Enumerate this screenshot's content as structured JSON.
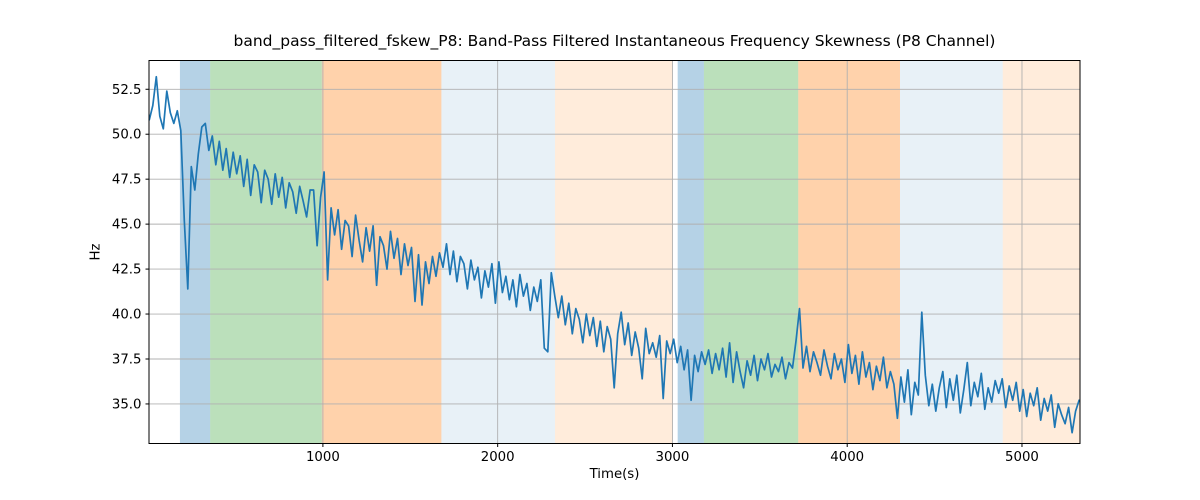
{
  "figure": {
    "title": "band_pass_filtered_fskew_P8: Band-Pass Filtered Instantaneous Frequency Skewness (P8 Channel)",
    "xlabel": "Time(s)",
    "ylabel": "Hz"
  },
  "chart_data": {
    "type": "line",
    "title": "band_pass_filtered_fskew_P8: Band-Pass Filtered Instantaneous Frequency Skewness (P8 Channel)",
    "xlabel": "Time(s)",
    "ylabel": "Hz",
    "xlim": [
      5,
      5332
    ],
    "ylim": [
      32.8,
      54.1
    ],
    "xticks": [
      1000,
      2000,
      3000,
      4000,
      5000
    ],
    "yticks": [
      35.0,
      37.5,
      40.0,
      42.5,
      45.0,
      47.5,
      50.0,
      52.5
    ],
    "grid": true,
    "grid_color": "#b0b0b0",
    "line_color": "#1f77b4",
    "axes_edge_color": "#000000",
    "background": "#ffffff",
    "legend": "none",
    "bands": [
      {
        "label": "blue-band-1",
        "start": 182,
        "end": 355,
        "color": "rgba(31,119,180,0.33)"
      },
      {
        "label": "green-band-1",
        "start": 355,
        "end": 994,
        "color": "rgba(44,160,44,0.32)"
      },
      {
        "label": "orange-band-1",
        "start": 994,
        "end": 1678,
        "color": "rgba(255,127,14,0.35)"
      },
      {
        "label": "lightblue-band-1",
        "start": 1678,
        "end": 2328,
        "color": "rgba(31,119,180,0.10)"
      },
      {
        "label": "lightorange-band-1",
        "start": 2328,
        "end": 3002,
        "color": "rgba(255,127,14,0.15)"
      },
      {
        "label": "blue-band-2",
        "start": 3030,
        "end": 3180,
        "color": "rgba(31,119,180,0.33)"
      },
      {
        "label": "green-band-2",
        "start": 3180,
        "end": 3720,
        "color": "rgba(44,160,44,0.32)"
      },
      {
        "label": "orange-band-2",
        "start": 3720,
        "end": 4302,
        "color": "rgba(255,127,14,0.35)"
      },
      {
        "label": "lightblue-band-2",
        "start": 4302,
        "end": 4890,
        "color": "rgba(31,119,180,0.10)"
      },
      {
        "label": "lightorange-band-2",
        "start": 4890,
        "end": 5332,
        "color": "rgba(255,127,14,0.15)"
      }
    ],
    "series": [
      {
        "name": "band_pass_filtered_fskew_P8",
        "x_start": 7,
        "x_step": 20,
        "y": [
          50.8,
          51.6,
          53.2,
          51.0,
          50.3,
          52.4,
          51.2,
          50.6,
          51.3,
          50.2,
          45.2,
          41.4,
          48.2,
          46.9,
          48.9,
          50.4,
          50.6,
          49.1,
          49.9,
          48.3,
          49.6,
          48.0,
          49.2,
          47.6,
          49.0,
          47.8,
          48.8,
          47.1,
          48.6,
          46.6,
          48.3,
          47.9,
          46.2,
          48.0,
          47.5,
          46.1,
          47.8,
          46.5,
          47.6,
          45.9,
          47.3,
          46.8,
          45.6,
          47.1,
          46.3,
          45.4,
          46.9,
          46.9,
          43.8,
          46.5,
          47.9,
          41.9,
          45.9,
          44.4,
          45.8,
          43.6,
          45.2,
          44.9,
          43.2,
          45.5,
          44.1,
          42.9,
          44.8,
          43.5,
          44.9,
          41.6,
          44.3,
          43.8,
          42.5,
          44.6,
          43.1,
          44.2,
          42.2,
          43.9,
          42.7,
          43.7,
          40.7,
          43.3,
          40.5,
          42.9,
          41.7,
          43.2,
          42.1,
          43.4,
          42.6,
          43.9,
          42.2,
          43.5,
          41.8,
          43.2,
          42.8,
          41.4,
          43.0,
          41.9,
          42.6,
          40.9,
          42.4,
          41.5,
          42.8,
          40.6,
          42.9,
          41.2,
          42.1,
          40.8,
          41.9,
          40.4,
          42.2,
          41.0,
          41.7,
          40.2,
          41.5,
          40.7,
          41.9,
          38.1,
          37.9,
          42.3,
          41.0,
          39.8,
          41.0,
          39.4,
          40.6,
          38.9,
          40.3,
          39.7,
          38.4,
          40.0,
          38.8,
          39.8,
          38.2,
          39.6,
          37.9,
          39.3,
          38.6,
          35.9,
          38.9,
          40.1,
          38.3,
          39.5,
          37.7,
          39.0,
          38.1,
          36.4,
          39.2,
          37.8,
          38.4,
          37.6,
          38.8,
          35.3,
          38.5,
          37.8,
          38.6,
          37.3,
          38.2,
          36.9,
          38.0,
          35.2,
          37.7,
          36.8,
          37.9,
          37.2,
          38.0,
          36.7,
          37.8,
          36.9,
          38.1,
          36.5,
          38.4,
          36.2,
          37.9,
          36.8,
          35.9,
          37.4,
          36.6,
          37.7,
          36.3,
          37.5,
          36.9,
          37.8,
          36.5,
          37.2,
          36.8,
          37.6,
          36.4,
          37.3,
          37.0,
          38.5,
          40.3,
          37.0,
          38.2,
          36.8,
          37.9,
          37.3,
          36.6,
          38.0,
          37.1,
          36.4,
          37.8,
          36.9,
          37.5,
          36.2,
          38.3,
          36.7,
          37.7,
          36.1,
          37.9,
          36.5,
          37.3,
          35.8,
          37.1,
          36.3,
          37.6,
          35.9,
          36.8,
          36.1,
          34.2,
          36.5,
          35.1,
          36.9,
          34.4,
          36.2,
          35.5,
          40.1,
          36.6,
          34.9,
          36.1,
          34.6,
          35.9,
          36.8,
          34.8,
          36.4,
          35.2,
          36.6,
          34.5,
          35.8,
          37.3,
          34.9,
          36.2,
          35.4,
          36.7,
          34.7,
          35.9,
          35.1,
          36.3,
          35.6,
          36.4,
          34.8,
          36.0,
          35.2,
          36.2,
          34.6,
          35.8,
          34.3,
          35.6,
          34.9,
          35.9,
          34.1,
          35.3,
          34.6,
          35.5,
          33.7,
          35.0,
          34.4,
          33.9,
          34.8,
          33.4,
          34.6,
          35.2
        ]
      }
    ]
  }
}
